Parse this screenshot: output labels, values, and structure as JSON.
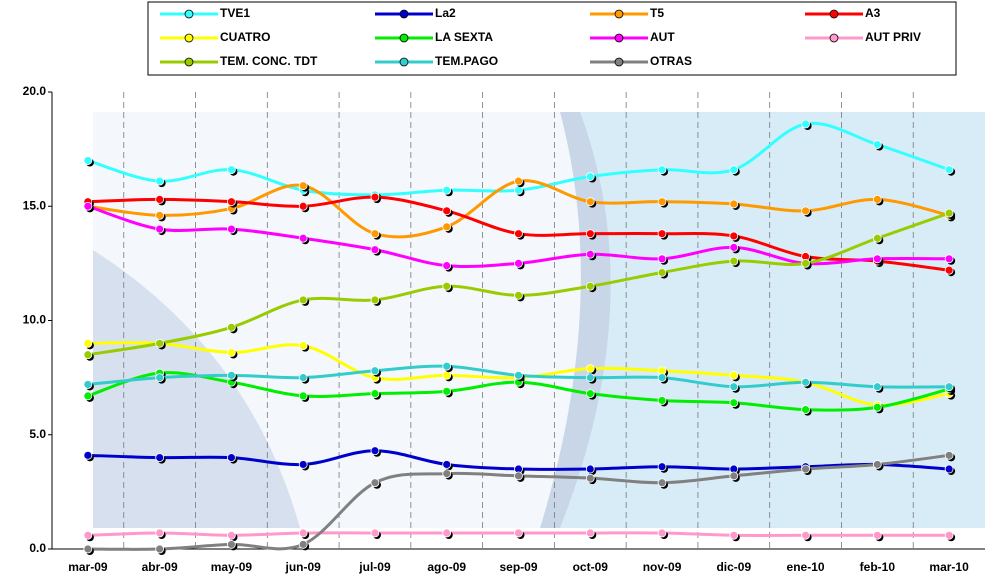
{
  "chart_data": {
    "type": "line",
    "categories": [
      "mar-09",
      "abr-09",
      "may-09",
      "jun-09",
      "jul-09",
      "ago-09",
      "sep-09",
      "oct-09",
      "nov-09",
      "dic-09",
      "ene-10",
      "feb-10",
      "mar-10"
    ],
    "series": [
      {
        "name": "TVE1",
        "color": "#33ffff",
        "values": [
          17.0,
          16.1,
          16.6,
          15.7,
          15.5,
          15.7,
          15.7,
          16.3,
          16.6,
          16.6,
          18.6,
          17.7,
          16.6
        ]
      },
      {
        "name": "La2",
        "color": "#0000cc",
        "values": [
          4.1,
          4.0,
          4.0,
          3.7,
          4.3,
          3.7,
          3.5,
          3.5,
          3.6,
          3.5,
          3.6,
          3.7,
          3.5
        ]
      },
      {
        "name": "T5",
        "color": "#ff9900",
        "values": [
          15.0,
          14.6,
          14.9,
          15.9,
          13.8,
          14.1,
          16.1,
          15.2,
          15.2,
          15.1,
          14.8,
          15.3,
          14.6
        ]
      },
      {
        "name": "A3",
        "color": "#ff0000",
        "values": [
          15.2,
          15.3,
          15.2,
          15.0,
          15.4,
          14.8,
          13.8,
          13.8,
          13.8,
          13.7,
          12.8,
          12.6,
          12.2
        ]
      },
      {
        "name": "CUATRO",
        "color": "#ffff00",
        "values": [
          9.0,
          9.0,
          8.6,
          8.9,
          7.5,
          7.6,
          7.5,
          7.9,
          7.8,
          7.6,
          7.3,
          6.3,
          6.8
        ]
      },
      {
        "name": "LA SEXTA",
        "color": "#00ee00",
        "values": [
          6.7,
          7.7,
          7.3,
          6.7,
          6.8,
          6.9,
          7.3,
          6.8,
          6.5,
          6.4,
          6.1,
          6.2,
          7.0
        ]
      },
      {
        "name": "AUT",
        "color": "#ff00ff",
        "values": [
          15.0,
          14.0,
          14.0,
          13.6,
          13.1,
          12.4,
          12.5,
          12.9,
          12.7,
          13.2,
          12.5,
          12.7,
          12.7
        ]
      },
      {
        "name": "AUT PRIV",
        "color": "#ff99cc",
        "values": [
          0.6,
          0.7,
          0.6,
          0.7,
          0.7,
          0.7,
          0.7,
          0.7,
          0.7,
          0.6,
          0.6,
          0.6,
          0.6
        ]
      },
      {
        "name": "TEM. CONC. TDT",
        "color": "#99cc00",
        "values": [
          8.5,
          9.0,
          9.7,
          10.9,
          10.9,
          11.5,
          11.1,
          11.5,
          12.1,
          12.6,
          12.5,
          13.6,
          14.7
        ]
      },
      {
        "name": "TEM.PAGO",
        "color": "#33cccc",
        "values": [
          7.2,
          7.5,
          7.6,
          7.5,
          7.8,
          8.0,
          7.6,
          7.5,
          7.5,
          7.1,
          7.3,
          7.1,
          7.1
        ]
      },
      {
        "name": "OTRAS",
        "color": "#808080",
        "values": [
          0.0,
          0.0,
          0.2,
          0.2,
          2.9,
          3.3,
          3.2,
          3.1,
          2.9,
          3.2,
          3.5,
          3.7,
          4.1
        ]
      }
    ],
    "ylim": [
      0,
      20
    ],
    "yticks": [
      {
        "value": 0,
        "label": "0.0"
      },
      {
        "value": 5,
        "label": "5.0"
      },
      {
        "value": 10,
        "label": "10.0"
      },
      {
        "value": 15,
        "label": "15.0"
      },
      {
        "value": 20,
        "label": "20.0"
      }
    ],
    "legend": "top"
  }
}
